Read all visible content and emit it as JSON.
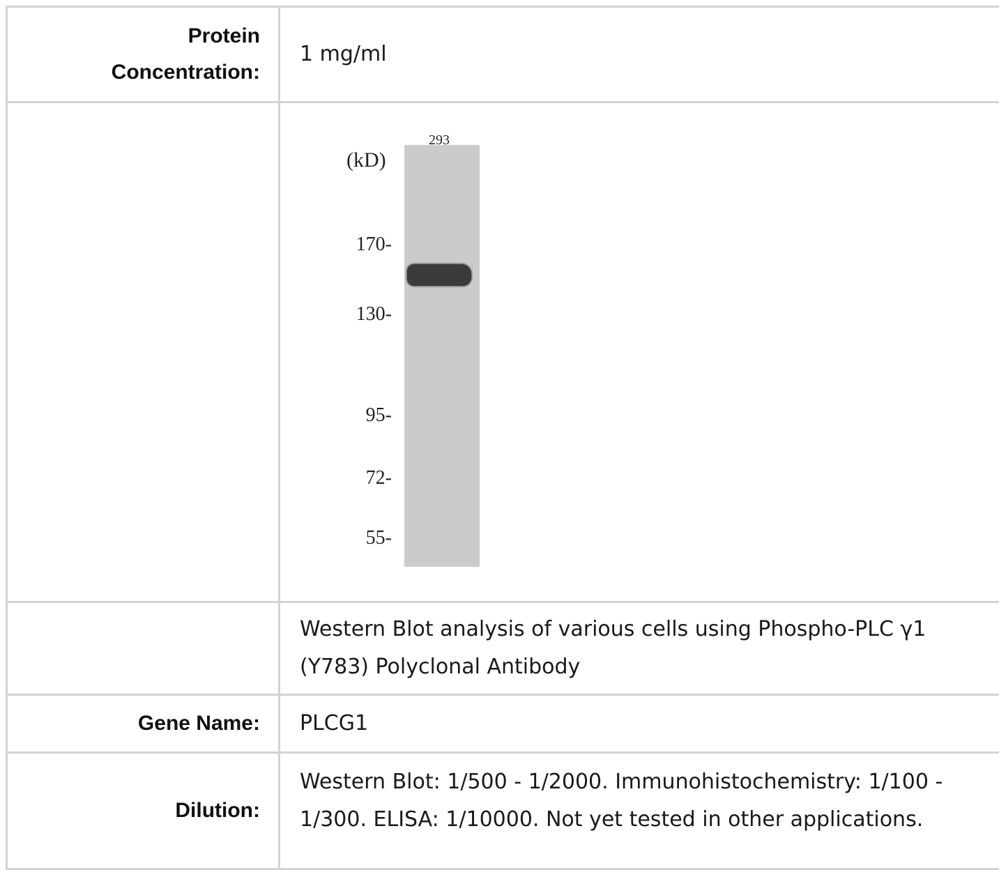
{
  "rows": {
    "protein": {
      "label_line1": "Protein",
      "label_line2": "Concentration:",
      "value": "1 mg/ml"
    },
    "image": {
      "lane_label": "293",
      "unit_label": "(kD)",
      "markers": [
        "170-",
        "130-",
        "95-",
        "72-",
        "55-"
      ]
    },
    "caption": {
      "line1": "Western Blot analysis of various cells using Phospho-PLC γ1",
      "line2": "(Y783) Polyclonal Antibody"
    },
    "gene": {
      "label": "Gene Name:",
      "value": "PLCG1"
    },
    "dilution": {
      "label": "Dilution:",
      "line1": "Western Blot: 1/500 - 1/2000. Immunohistochemistry: 1/100 -",
      "line2": "1/300. ELISA: 1/10000. Not yet tested in other applications."
    }
  }
}
